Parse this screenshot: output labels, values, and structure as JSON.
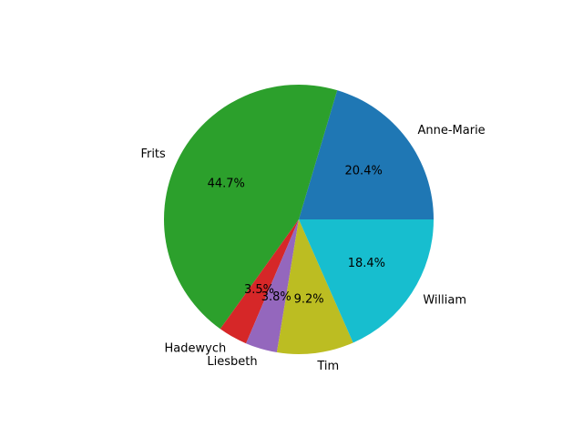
{
  "chart_data": {
    "type": "pie",
    "title": "",
    "start_angle_deg": 0,
    "direction": "counterclockwise",
    "slices": [
      {
        "label": "Anne-Marie",
        "percent": 20.4,
        "percent_label": "20.4%",
        "color": "#1f77b4"
      },
      {
        "label": "Frits",
        "percent": 44.7,
        "percent_label": "44.7%",
        "color": "#2ca02c"
      },
      {
        "label": "Hadewych",
        "percent": 3.5,
        "percent_label": "3.5%",
        "color": "#d62728"
      },
      {
        "label": "Liesbeth",
        "percent": 3.8,
        "percent_label": "3.8%",
        "color": "#9467bd"
      },
      {
        "label": "Tim",
        "percent": 9.2,
        "percent_label": "9.2%",
        "color": "#bcbd22"
      },
      {
        "label": "William",
        "percent": 18.4,
        "percent_label": "18.4%",
        "color": "#17becf"
      }
    ]
  }
}
